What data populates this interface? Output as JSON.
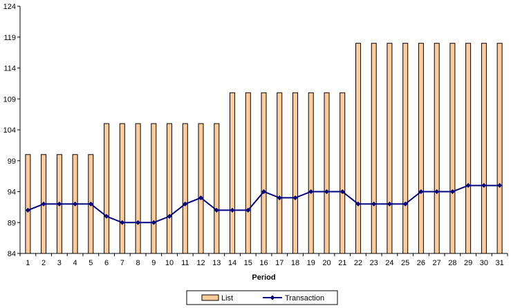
{
  "chart_data": {
    "type": "bar+line",
    "categories": [
      "1",
      "2",
      "3",
      "4",
      "5",
      "6",
      "7",
      "8",
      "9",
      "10",
      "11",
      "12",
      "13",
      "14",
      "15",
      "16",
      "17",
      "18",
      "19",
      "20",
      "21",
      "22",
      "23",
      "24",
      "25",
      "26",
      "27",
      "28",
      "29",
      "30",
      "31"
    ],
    "series": [
      {
        "name": "List",
        "type": "bar",
        "values": [
          100,
          100,
          100,
          100,
          100,
          105,
          105,
          105,
          105,
          105,
          105,
          105,
          105,
          110,
          110,
          110,
          110,
          110,
          110,
          110,
          110,
          118,
          118,
          118,
          118,
          118,
          118,
          118,
          118,
          118,
          118
        ]
      },
      {
        "name": "Transaction",
        "type": "line",
        "values": [
          91,
          92,
          92,
          92,
          92,
          90,
          89,
          89,
          89,
          90,
          92,
          93,
          91,
          91,
          91,
          94,
          93,
          93,
          94,
          94,
          94,
          92,
          92,
          92,
          92,
          94,
          94,
          94,
          95,
          95,
          95
        ]
      }
    ],
    "xlabel": "Period",
    "ylabel": "",
    "ylim": [
      84,
      124
    ],
    "yticks": [
      "84",
      "89",
      "94",
      "99",
      "104",
      "109",
      "114",
      "119",
      "124"
    ],
    "grid": false,
    "legend_position": "bottom-center",
    "colors": {
      "bar_fill": "#FFCC99",
      "bar_stroke": "#000000",
      "line": "#000080",
      "marker": "#000080",
      "axis": "#000000"
    }
  }
}
